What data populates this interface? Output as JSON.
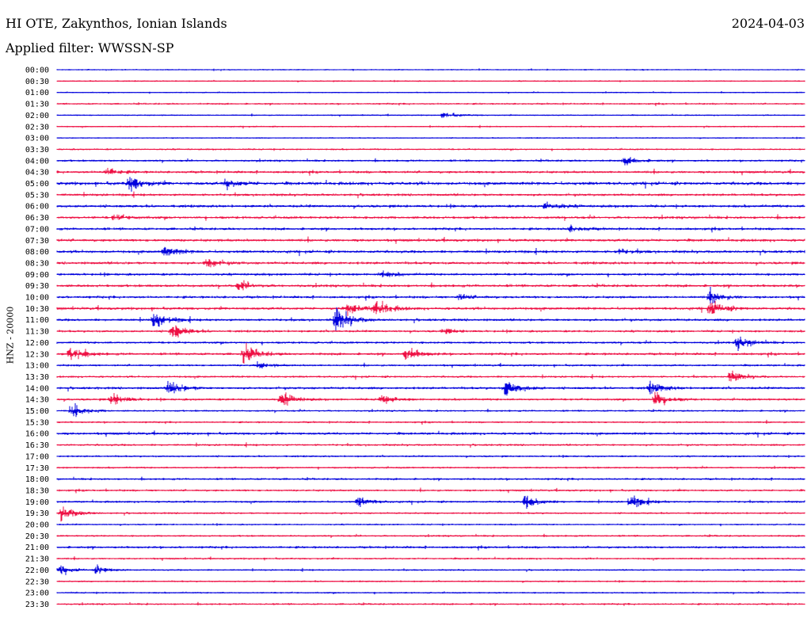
{
  "header": {
    "station": "HI OTE, Zakynthos, Ionian Islands",
    "date": "2024-04-03",
    "filter": "Applied filter: WWSSN-SP"
  },
  "channel_label": "HNZ - 20000",
  "colors": {
    "even_row": "#0000dd",
    "odd_row": "#ee1144"
  },
  "chart_data": {
    "type": "seismogram-helicorder",
    "title": "HI OTE, Zakynthos, Ionian Islands",
    "date": "2024-04-03",
    "filter": "WWSSN-SP",
    "ylabel": "HNZ - 20000",
    "row_labels": [
      "00:00",
      "00:30",
      "01:00",
      "01:30",
      "02:00",
      "02:30",
      "03:00",
      "03:30",
      "04:00",
      "04:30",
      "05:00",
      "05:30",
      "06:00",
      "06:30",
      "07:00",
      "07:30",
      "08:00",
      "08:30",
      "09:00",
      "09:30",
      "10:00",
      "10:30",
      "11:00",
      "11:30",
      "12:00",
      "12:30",
      "13:00",
      "13:30",
      "14:00",
      "14:30",
      "15:00",
      "15:30",
      "16:00",
      "16:30",
      "17:00",
      "17:30",
      "18:00",
      "18:30",
      "19:00",
      "19:30",
      "20:00",
      "20:30",
      "21:00",
      "21:30",
      "22:00",
      "22:30",
      "23:00",
      "23:30"
    ],
    "row_minutes": 30,
    "noise_level": [
      0.35,
      0.4,
      0.35,
      0.55,
      0.4,
      0.4,
      0.35,
      0.55,
      0.7,
      0.9,
      1.2,
      0.9,
      1.0,
      1.0,
      0.9,
      1.0,
      1.0,
      1.0,
      0.9,
      1.0,
      0.9,
      1.0,
      0.9,
      0.8,
      0.8,
      0.9,
      0.7,
      0.7,
      0.9,
      0.8,
      0.6,
      0.6,
      0.9,
      0.7,
      0.6,
      0.6,
      0.7,
      0.7,
      0.7,
      0.6,
      0.5,
      0.6,
      0.8,
      0.6,
      0.5,
      0.5,
      0.5,
      0.6
    ],
    "events": [
      {
        "row": 4,
        "minute": 15.5,
        "amplitude": 3
      },
      {
        "row": 8,
        "minute": 22.8,
        "amplitude": 4
      },
      {
        "row": 9,
        "minute": 2.0,
        "amplitude": 4
      },
      {
        "row": 10,
        "minute": 2.9,
        "amplitude": 8
      },
      {
        "row": 10,
        "minute": 6.8,
        "amplitude": 5
      },
      {
        "row": 12,
        "minute": 19.6,
        "amplitude": 5
      },
      {
        "row": 13,
        "minute": 2.3,
        "amplitude": 3
      },
      {
        "row": 14,
        "minute": 20.6,
        "amplitude": 3
      },
      {
        "row": 16,
        "minute": 4.3,
        "amplitude": 6
      },
      {
        "row": 16,
        "minute": 22.5,
        "amplitude": 3
      },
      {
        "row": 17,
        "minute": 6.0,
        "amplitude": 5
      },
      {
        "row": 18,
        "minute": 13.0,
        "amplitude": 3
      },
      {
        "row": 19,
        "minute": 7.3,
        "amplitude": 5
      },
      {
        "row": 20,
        "minute": 16.1,
        "amplitude": 3
      },
      {
        "row": 20,
        "minute": 26.2,
        "amplitude": 7
      },
      {
        "row": 21,
        "minute": 11.7,
        "amplitude": 6
      },
      {
        "row": 21,
        "minute": 12.8,
        "amplitude": 9
      },
      {
        "row": 21,
        "minute": 26.2,
        "amplitude": 8
      },
      {
        "row": 22,
        "minute": 3.9,
        "amplitude": 9
      },
      {
        "row": 22,
        "minute": 11.2,
        "amplitude": 14
      },
      {
        "row": 23,
        "minute": 4.6,
        "amplitude": 8
      },
      {
        "row": 23,
        "minute": 15.5,
        "amplitude": 3
      },
      {
        "row": 24,
        "minute": 27.3,
        "amplitude": 7
      },
      {
        "row": 25,
        "minute": 0.5,
        "amplitude": 9
      },
      {
        "row": 25,
        "minute": 7.5,
        "amplitude": 10
      },
      {
        "row": 25,
        "minute": 14.0,
        "amplitude": 7
      },
      {
        "row": 26,
        "minute": 8.0,
        "amplitude": 3
      },
      {
        "row": 27,
        "minute": 27.0,
        "amplitude": 6
      },
      {
        "row": 28,
        "minute": 4.5,
        "amplitude": 8
      },
      {
        "row": 28,
        "minute": 18.0,
        "amplitude": 10
      },
      {
        "row": 28,
        "minute": 23.8,
        "amplitude": 6
      },
      {
        "row": 29,
        "minute": 2.2,
        "amplitude": 7
      },
      {
        "row": 29,
        "minute": 9.0,
        "amplitude": 7
      },
      {
        "row": 29,
        "minute": 13.0,
        "amplitude": 5
      },
      {
        "row": 29,
        "minute": 24.0,
        "amplitude": 9
      },
      {
        "row": 30,
        "minute": 0.6,
        "amplitude": 8
      },
      {
        "row": 38,
        "minute": 12.1,
        "amplitude": 5
      },
      {
        "row": 38,
        "minute": 18.8,
        "amplitude": 7
      },
      {
        "row": 38,
        "minute": 23.0,
        "amplitude": 7
      },
      {
        "row": 39,
        "minute": 0.2,
        "amplitude": 8
      },
      {
        "row": 44,
        "minute": 0.1,
        "amplitude": 4
      },
      {
        "row": 44,
        "minute": 1.6,
        "amplitude": 4
      }
    ]
  }
}
